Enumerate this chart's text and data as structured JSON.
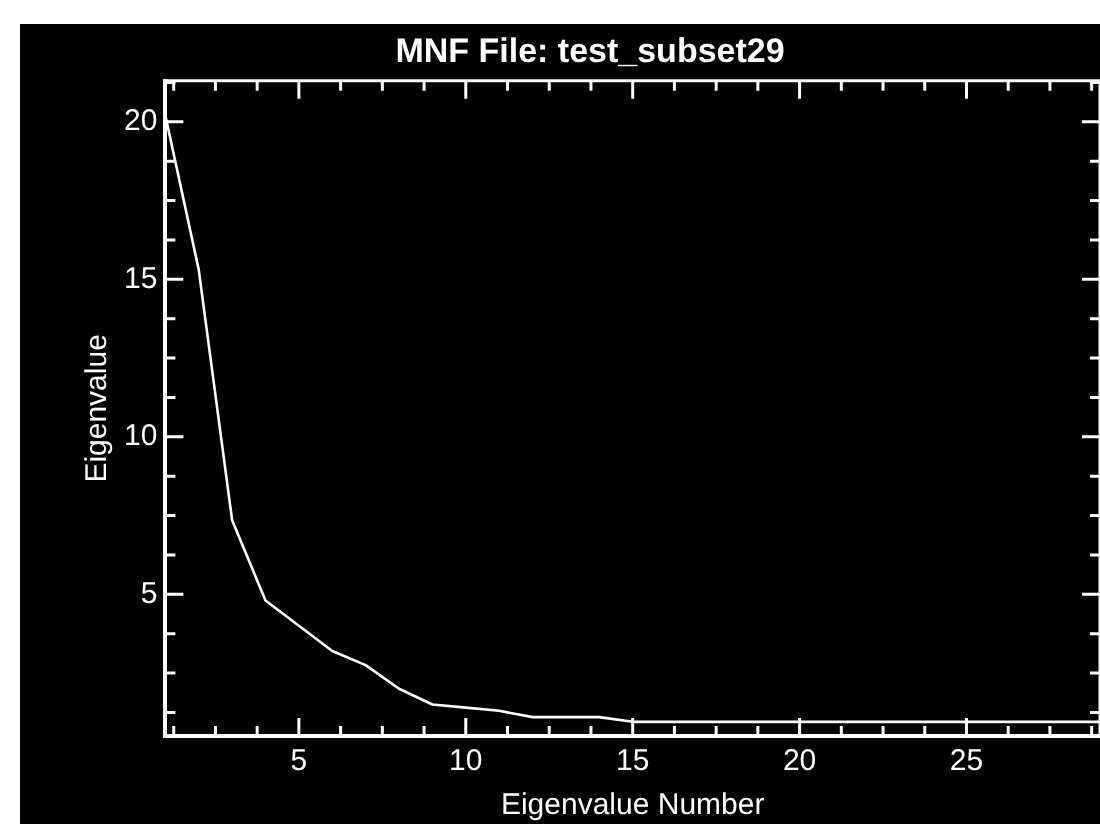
{
  "chart_data": {
    "type": "line",
    "title": "MNF File: test_subset29",
    "xlabel": "Eigenvalue Number",
    "ylabel": "Eigenvalue",
    "x": [
      1,
      2,
      3,
      4,
      5,
      6,
      7,
      8,
      9,
      10,
      11,
      12,
      13,
      14,
      15,
      16,
      17,
      18,
      19,
      20,
      21,
      22,
      23,
      24,
      25,
      26,
      27,
      28,
      29
    ],
    "series": [
      {
        "color": "#ffffff",
        "values": [
          20.2,
          15.3,
          7.35,
          4.8,
          4.0,
          3.2,
          2.75,
          2.0,
          1.5,
          1.4,
          1.3,
          1.1,
          1.1,
          1.1,
          0.95,
          0.95,
          0.95,
          0.95,
          0.95,
          0.95,
          0.95,
          0.95,
          0.95,
          0.95,
          0.95,
          0.95,
          0.95,
          0.95,
          0.95
        ]
      }
    ],
    "xlim": [
      1,
      29
    ],
    "ylim": [
      0.5,
      21.3
    ],
    "xticks": [
      {
        "value": 1.25,
        "label": null
      },
      {
        "value": 2.5,
        "label": null
      },
      {
        "value": 3.75,
        "label": null
      },
      5,
      {
        "value": 6.25,
        "label": null
      },
      {
        "value": 7.5,
        "label": null
      },
      {
        "value": 8.75,
        "label": null
      },
      10,
      {
        "value": 11.25,
        "label": null
      },
      {
        "value": 12.5,
        "label": null
      },
      {
        "value": 13.75,
        "label": null
      },
      15,
      {
        "value": 16.25,
        "label": null
      },
      {
        "value": 17.5,
        "label": null
      },
      {
        "value": 18.75,
        "label": null
      },
      20,
      {
        "value": 21.25,
        "label": null
      },
      {
        "value": 22.5,
        "label": null
      },
      {
        "value": 23.75,
        "label": null
      },
      25,
      {
        "value": 26.25,
        "label": null
      },
      {
        "value": 27.5,
        "label": null
      },
      {
        "value": 28.75,
        "label": null
      }
    ],
    "yticks": [
      {
        "value": 1.25,
        "label": null
      },
      {
        "value": 2.5,
        "label": null
      },
      {
        "value": 3.75,
        "label": null
      },
      5,
      {
        "value": 6.25,
        "label": null
      },
      {
        "value": 7.5,
        "label": null
      },
      {
        "value": 8.75,
        "label": null
      },
      10,
      {
        "value": 11.25,
        "label": null
      },
      {
        "value": 12.5,
        "label": null
      },
      {
        "value": 13.75,
        "label": null
      },
      15,
      {
        "value": 16.25,
        "label": null
      },
      {
        "value": 17.5,
        "label": null
      },
      {
        "value": 18.75,
        "label": null
      },
      20,
      {
        "value": 21.25,
        "label": null
      }
    ],
    "marker": "none",
    "line_style": "solid",
    "legend": false,
    "grid": false
  }
}
